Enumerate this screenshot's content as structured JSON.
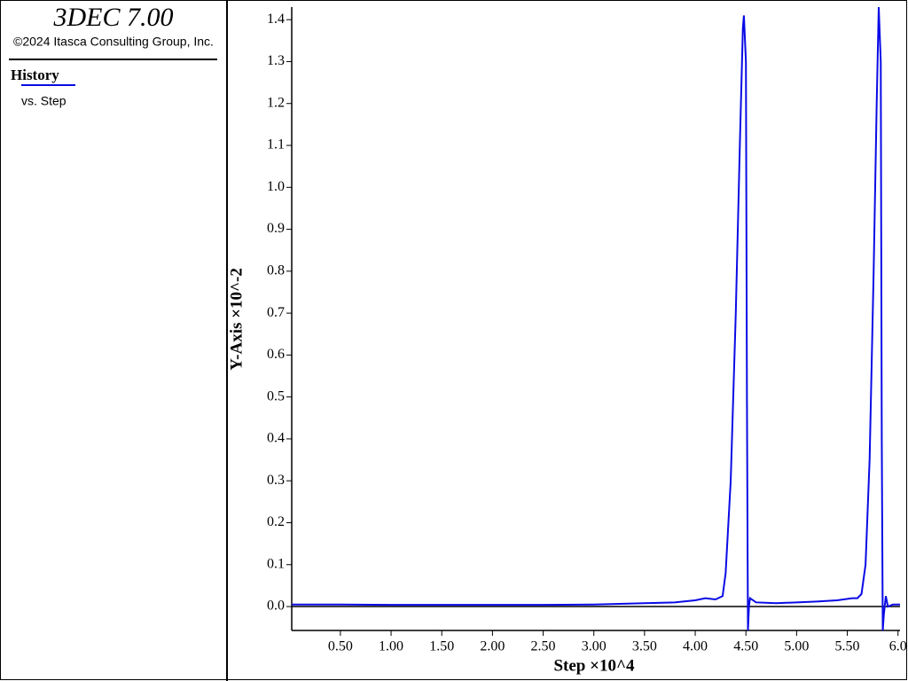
{
  "header": {
    "title": "3DEC 7.00",
    "copyright": "©2024 Itasca Consulting Group, Inc.",
    "section": "History"
  },
  "chart_data": {
    "type": "line",
    "x_label": "Step ×10^4",
    "y_label": "Y-Axis ×10^-2",
    "xlim": [
      0.02,
      6.02
    ],
    "ylim": [
      -0.057,
      1.43
    ],
    "xticks": [
      {
        "value": 0.5,
        "label": "0.50"
      },
      {
        "value": 1,
        "label": "1.00"
      },
      {
        "value": 1.5,
        "label": "1.50"
      },
      {
        "value": 2,
        "label": "2.00"
      },
      {
        "value": 2.5,
        "label": "2.50"
      },
      {
        "value": 3,
        "label": "3.00"
      },
      {
        "value": 3.5,
        "label": "3.50"
      },
      {
        "value": 4,
        "label": "4.00"
      },
      {
        "value": 4.5,
        "label": "4.50"
      },
      {
        "value": 5,
        "label": "5.00"
      },
      {
        "value": 5.5,
        "label": "5.50"
      },
      {
        "value": 6,
        "label": "6.0"
      }
    ],
    "yticks": [
      {
        "value": 0,
        "label": "0.0"
      },
      0.1,
      0.2,
      0.3,
      0.4,
      0.5,
      0.6,
      0.7,
      0.8,
      0.9,
      {
        "value": 1,
        "label": "1.0"
      },
      1.1,
      1.2,
      1.3,
      1.4
    ],
    "series": [
      {
        "name": "vs. Step",
        "color": "#0a0ae6",
        "x": [
          0.02,
          0.5,
          1.0,
          1.5,
          2.0,
          2.5,
          3.0,
          3.5,
          3.8,
          4.0,
          4.1,
          4.2,
          4.27,
          4.3,
          4.35,
          4.4,
          4.44,
          4.47,
          4.48,
          4.5,
          4.51,
          4.52,
          4.53,
          4.54,
          4.6,
          4.8,
          5.0,
          5.2,
          5.4,
          5.55,
          5.6,
          5.64,
          5.68,
          5.72,
          5.76,
          5.79,
          5.81,
          5.83,
          5.84,
          5.85,
          5.86,
          5.88,
          5.9,
          5.95,
          6.02
        ],
        "values": [
          0.005,
          0.005,
          0.004,
          0.004,
          0.004,
          0.004,
          0.005,
          0.008,
          0.01,
          0.015,
          0.02,
          0.017,
          0.025,
          0.08,
          0.3,
          0.7,
          1.1,
          1.38,
          1.41,
          1.3,
          0.5,
          -0.057,
          0.0,
          0.02,
          0.01,
          0.008,
          0.01,
          0.012,
          0.015,
          0.02,
          0.02,
          0.03,
          0.1,
          0.35,
          0.8,
          1.2,
          1.43,
          1.3,
          0.4,
          -0.057,
          -0.02,
          0.025,
          0.0,
          0.005,
          0.005
        ]
      }
    ]
  }
}
